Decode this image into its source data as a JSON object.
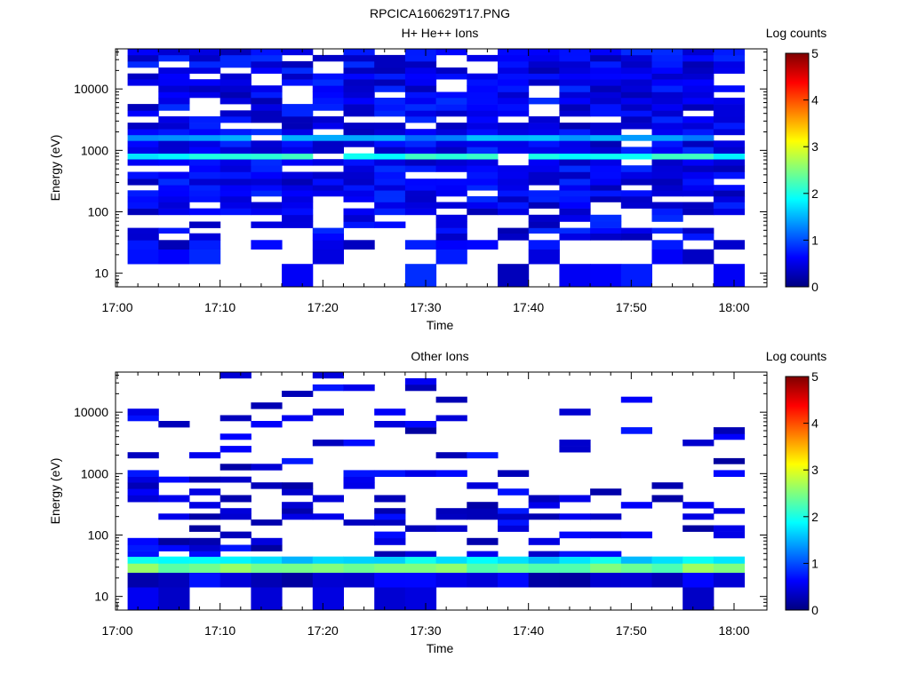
{
  "figure": {
    "title": "RPCICA160629T17.PNG",
    "palette": [
      "#00007f",
      "#0000ff",
      "#007fff",
      "#00ffff",
      "#7fff7f",
      "#ffff00",
      "#ff7f00",
      "#ff0000",
      "#7f0000"
    ]
  },
  "chart_data": [
    {
      "type": "heatmap",
      "title": "H+ He++ Ions",
      "xlabel": "Time",
      "ylabel": "Energy (eV)",
      "x_ticks": [
        "17:00",
        "17:10",
        "17:20",
        "17:30",
        "17:40",
        "17:50",
        "18:00"
      ],
      "y_ticks": [
        "10",
        "100",
        "1000",
        "10000"
      ],
      "y_scale": "log",
      "ylim": [
        6,
        45000
      ],
      "xlim": [
        "17:00",
        "18:00"
      ],
      "colorbar": {
        "label": "Log counts",
        "range": [
          0,
          5
        ],
        "ticks": [
          "0",
          "1",
          "2",
          "3",
          "4",
          "5"
        ]
      },
      "time_bins": [
        "17:01",
        "17:04",
        "17:07",
        "17:10",
        "17:13",
        "17:16",
        "17:19",
        "17:22",
        "17:25",
        "17:28",
        "17:31",
        "17:34",
        "17:37",
        "17:40",
        "17:43",
        "17:46",
        "17:49",
        "17:52",
        "17:55",
        "17:58"
      ],
      "energy_bins": [
        10,
        20,
        30,
        40,
        50,
        60,
        80,
        100,
        130,
        160,
        200,
        250,
        300,
        400,
        500,
        650,
        800,
        1000,
        1300,
        1600,
        2000,
        2500,
        3200,
        4000,
        5000,
        6500,
        8000,
        10000,
        13000,
        16000,
        20000,
        25000,
        32000,
        40000
      ],
      "occupancy": 0.86,
      "base_level": 0.25,
      "peaks": [
        {
          "energy": 800,
          "level": 2.2
        },
        {
          "energy": 1600,
          "level": 1.6
        }
      ]
    },
    {
      "type": "heatmap",
      "title": "Other Ions",
      "xlabel": "Time",
      "ylabel": "Energy (eV)",
      "x_ticks": [
        "17:00",
        "17:10",
        "17:20",
        "17:30",
        "17:40",
        "17:50",
        "18:00"
      ],
      "y_ticks": [
        "10",
        "100",
        "1000",
        "10000"
      ],
      "y_scale": "log",
      "ylim": [
        6,
        45000
      ],
      "xlim": [
        "17:00",
        "18:00"
      ],
      "colorbar": {
        "label": "Log counts",
        "range": [
          0,
          5
        ],
        "ticks": [
          "0",
          "1",
          "2",
          "3",
          "4",
          "5"
        ]
      },
      "time_bins": [
        "17:01",
        "17:04",
        "17:07",
        "17:10",
        "17:13",
        "17:16",
        "17:19",
        "17:22",
        "17:25",
        "17:28",
        "17:31",
        "17:34",
        "17:37",
        "17:40",
        "17:43",
        "17:46",
        "17:49",
        "17:52",
        "17:55",
        "17:58"
      ],
      "energy_bins": [
        10,
        20,
        30,
        40,
        50,
        60,
        80,
        100,
        130,
        160,
        200,
        250,
        300,
        400,
        500,
        650,
        800,
        1000,
        1300,
        1600,
        2000,
        2500,
        3200,
        4000,
        5000,
        6500,
        8000,
        10000,
        13000,
        16000,
        20000,
        25000,
        32000,
        40000
      ],
      "occupancy": 0.3,
      "base_level": 0.15,
      "peaks": [
        {
          "energy": 25,
          "level": 2.4
        },
        {
          "energy": 30,
          "level": 2.7
        },
        {
          "energy": 35,
          "level": 2.0
        }
      ]
    }
  ]
}
